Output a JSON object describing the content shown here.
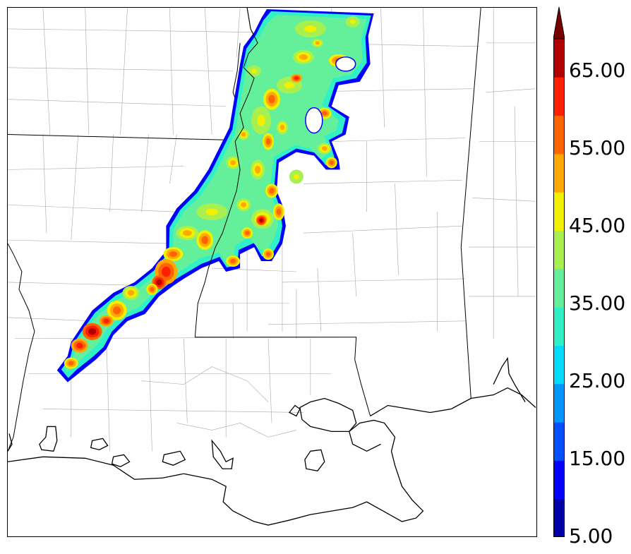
{
  "colorbar": {
    "levels": [
      5,
      10,
      15,
      20,
      25,
      30,
      35,
      40,
      45,
      50,
      55,
      60,
      65,
      70
    ],
    "colors": [
      "#0000a8",
      "#0000ff",
      "#0050ff",
      "#0096ff",
      "#00dcff",
      "#30f0c8",
      "#64f09a",
      "#a8f050",
      "#f0f000",
      "#ffa800",
      "#ff6400",
      "#ff1e00",
      "#b40000"
    ],
    "extend_color": "#7a0000",
    "tick_labels": [
      "65.00",
      "55.00",
      "45.00",
      "35.00",
      "25.00",
      "15.00",
      "5.00"
    ]
  },
  "map": {
    "background": "#ffffff",
    "state_border_color": "#000000",
    "county_border_color": "#a0a0a0",
    "coast_color": "#000000"
  }
}
